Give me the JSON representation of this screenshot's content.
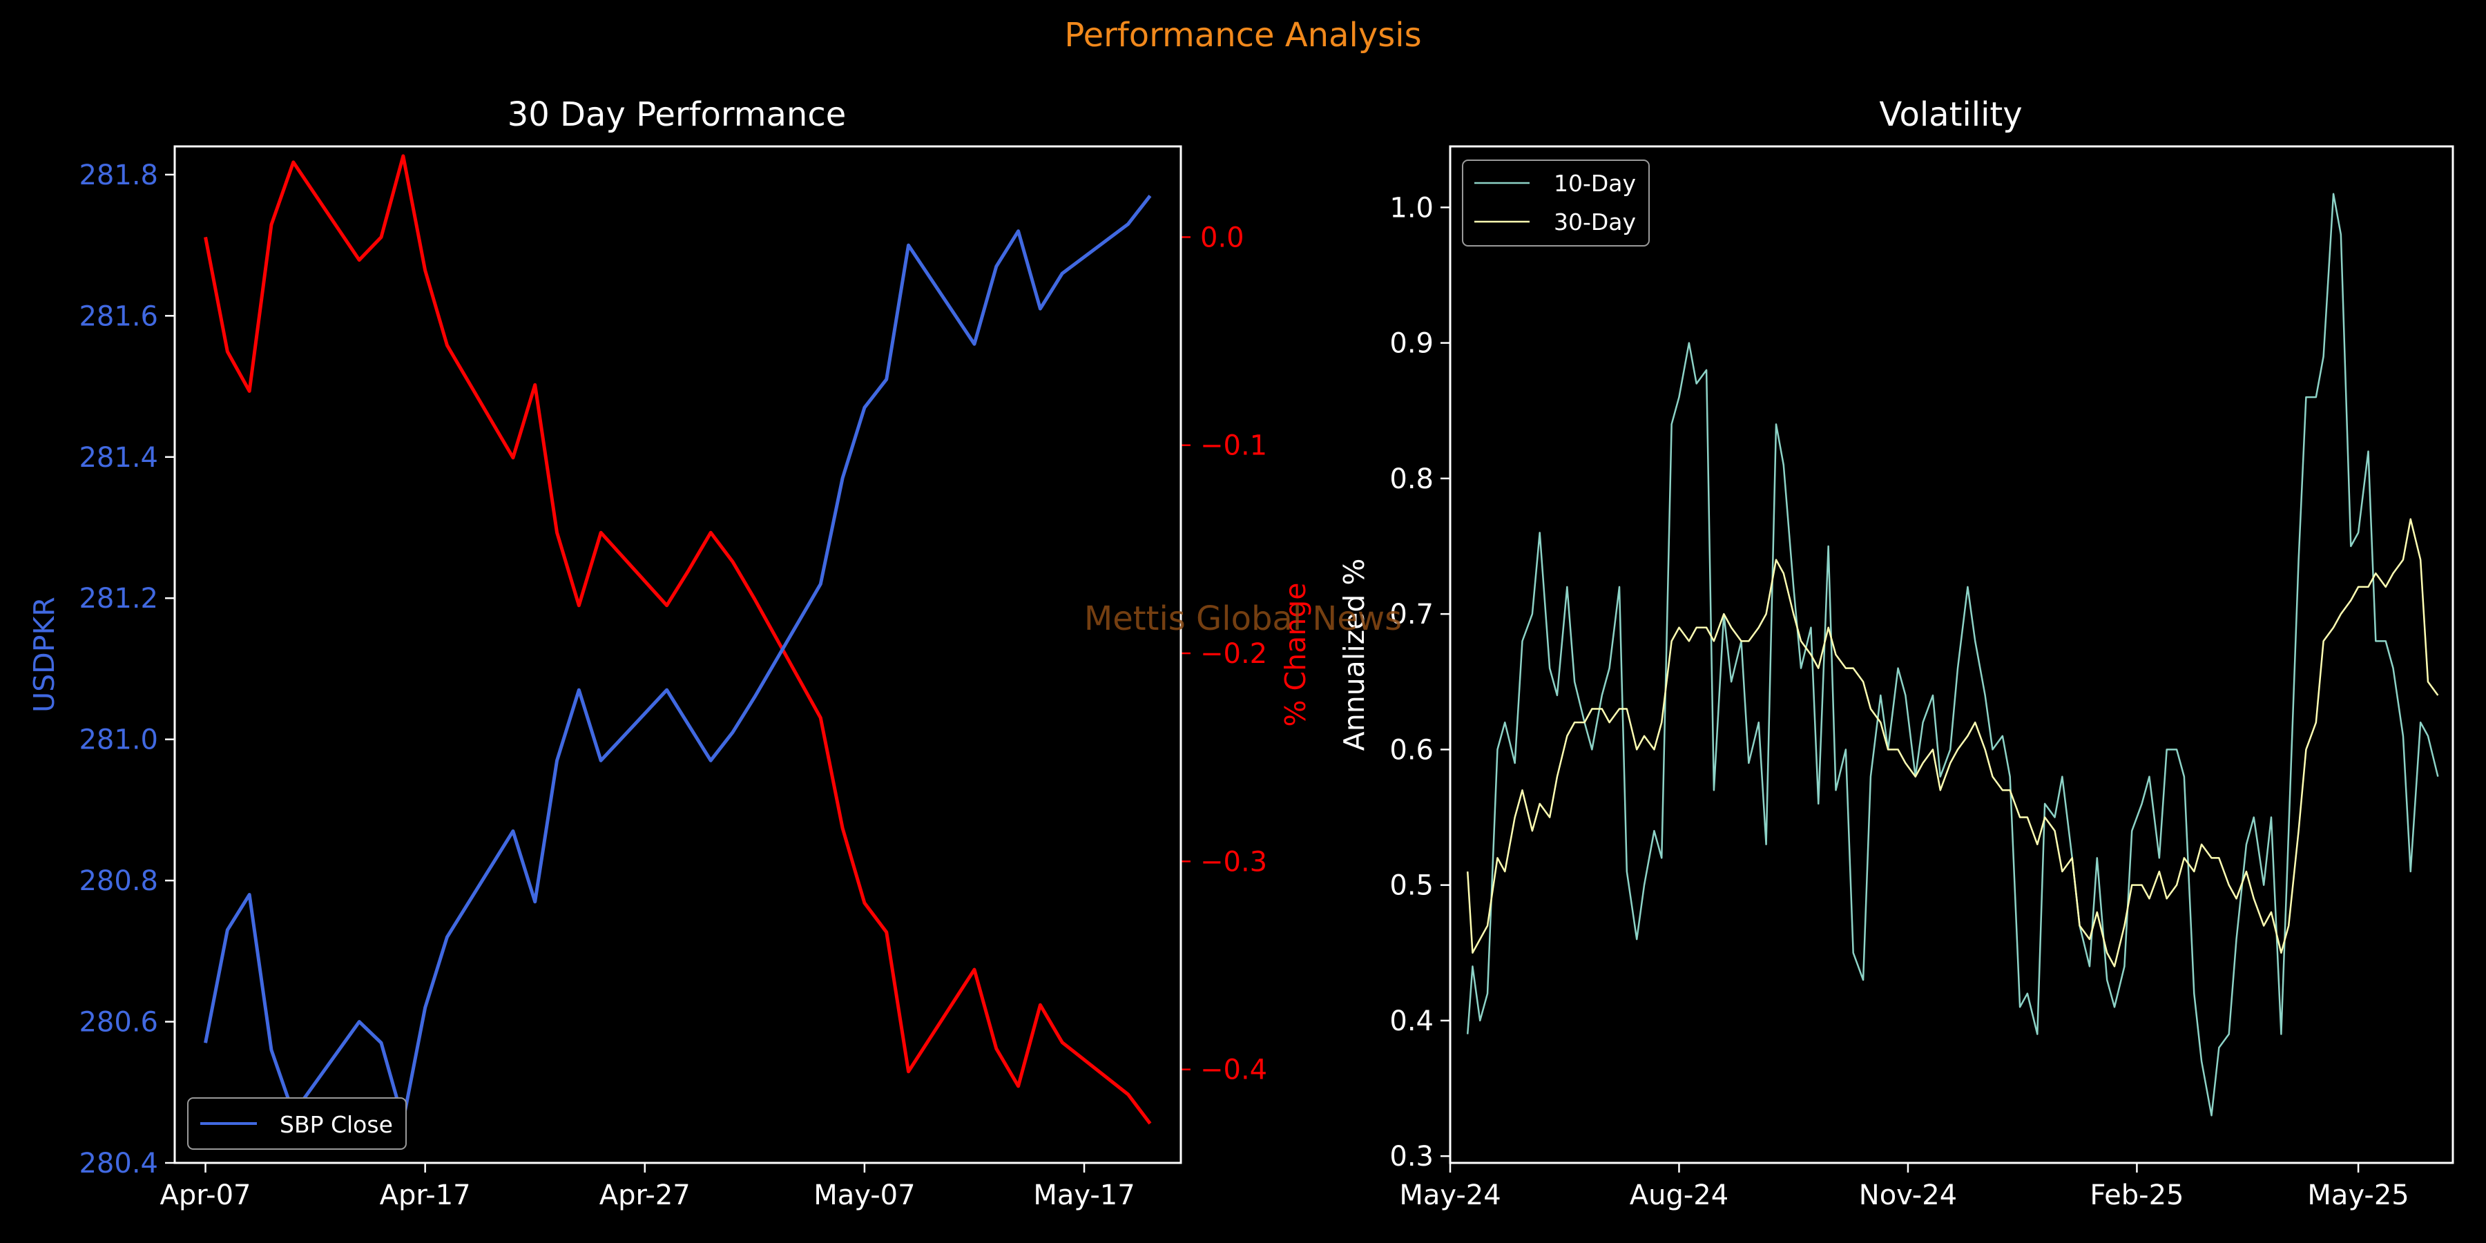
{
  "figure": {
    "title": "Performance Analysis",
    "watermark": "Mettis Global News",
    "colors": {
      "background": "#000000",
      "title": "#f2891c",
      "watermark": "#8a4a14",
      "axis_text": "#ffffff"
    }
  },
  "chart_data": [
    {
      "type": "line",
      "title": "30 Day Performance",
      "xlabel": "",
      "ylabel": "USDPKR",
      "ylabel_right": "% Change",
      "x_tick_labels": [
        "Apr-07",
        "Apr-17",
        "Apr-27",
        "May-07",
        "May-17"
      ],
      "x_tick_days": [
        0,
        10,
        20,
        30,
        40
      ],
      "ylim": [
        280.4,
        281.84
      ],
      "y_ticks": [
        280.4,
        280.6,
        280.8,
        281.0,
        281.2,
        281.4,
        281.6,
        281.8
      ],
      "y_tick_labels": [
        "280.4",
        "280.6",
        "280.8",
        "281.0",
        "281.2",
        "281.4",
        "281.6",
        "281.8"
      ],
      "ylim_right": [
        -0.4449,
        0.0436
      ],
      "y_ticks_right": [
        0.0,
        -0.1,
        -0.2,
        -0.3,
        -0.4
      ],
      "y_tick_labels_right": [
        "0.0",
        "−0.1",
        "−0.2",
        "−0.3",
        "−0.4"
      ],
      "legend": {
        "placement": "lower-left",
        "entries": [
          "SBP Close"
        ]
      },
      "grid": false,
      "series": [
        {
          "name": "SBP Close",
          "axis": "left",
          "color": "#4169e1",
          "x": [
            "2025-04-07",
            "2025-04-08",
            "2025-04-09",
            "2025-04-10",
            "2025-04-11",
            "2025-04-14",
            "2025-04-15",
            "2025-04-16",
            "2025-04-17",
            "2025-04-18",
            "2025-04-21",
            "2025-04-22",
            "2025-04-23",
            "2025-04-24",
            "2025-04-25",
            "2025-04-28",
            "2025-04-29",
            "2025-04-30",
            "2025-05-01",
            "2025-05-02",
            "2025-05-05",
            "2025-05-06",
            "2025-05-07",
            "2025-05-08",
            "2025-05-09",
            "2025-05-12",
            "2025-05-13",
            "2025-05-14",
            "2025-05-15",
            "2025-05-16",
            "2025-05-19",
            "2025-05-20"
          ],
          "values": [
            280.57,
            280.73,
            280.78,
            280.56,
            280.47,
            280.6,
            280.57,
            280.46,
            280.62,
            280.72,
            280.87,
            280.77,
            280.97,
            281.07,
            280.97,
            281.07,
            281.02,
            280.97,
            281.01,
            281.06,
            281.22,
            281.37,
            281.47,
            281.51,
            281.7,
            281.56,
            281.67,
            281.72,
            281.61,
            281.66,
            281.73,
            281.77
          ]
        },
        {
          "name": "% Change",
          "axis": "right",
          "color": "#ff0000",
          "x": [
            "2025-04-07",
            "2025-04-08",
            "2025-04-09",
            "2025-04-10",
            "2025-04-11",
            "2025-04-14",
            "2025-04-15",
            "2025-04-16",
            "2025-04-17",
            "2025-04-18",
            "2025-04-21",
            "2025-04-22",
            "2025-04-23",
            "2025-04-24",
            "2025-04-25",
            "2025-04-28",
            "2025-04-29",
            "2025-04-30",
            "2025-05-01",
            "2025-05-02",
            "2025-05-05",
            "2025-05-06",
            "2025-05-07",
            "2025-05-08",
            "2025-05-09",
            "2025-05-12",
            "2025-05-13",
            "2025-05-14",
            "2025-05-15",
            "2025-05-16",
            "2025-05-19",
            "2025-05-20"
          ],
          "values": [
            0.0,
            -0.055,
            -0.074,
            0.006,
            0.036,
            -0.011,
            0.0,
            0.039,
            -0.016,
            -0.052,
            -0.106,
            -0.071,
            -0.142,
            -0.177,
            -0.142,
            -0.177,
            -0.16,
            -0.142,
            -0.156,
            -0.174,
            -0.231,
            -0.284,
            -0.32,
            -0.334,
            -0.401,
            -0.352,
            -0.39,
            -0.408,
            -0.369,
            -0.387,
            -0.412,
            -0.426
          ]
        }
      ]
    },
    {
      "type": "line",
      "title": "Volatility",
      "xlabel": "",
      "ylabel": "Annualized %",
      "x_tick_labels": [
        "May-24",
        "Aug-24",
        "Nov-24",
        "Feb-25",
        "May-25"
      ],
      "x_tick_dates": [
        "2024-05-01",
        "2024-08-01",
        "2024-11-01",
        "2025-02-01",
        "2025-05-01"
      ],
      "xlim": [
        "2024-05-01",
        "2025-06-08"
      ],
      "ylim": [
        0.295,
        1.045
      ],
      "y_ticks": [
        0.3,
        0.4,
        0.5,
        0.6,
        0.7,
        0.8,
        0.9,
        1.0
      ],
      "y_tick_labels": [
        "0.3",
        "0.4",
        "0.5",
        "0.6",
        "0.7",
        "0.8",
        "0.9",
        "1.0"
      ],
      "legend": {
        "placement": "top-left",
        "entries": [
          "10-Day",
          "30-Day"
        ]
      },
      "grid": false,
      "series": [
        {
          "name": "10-Day",
          "color": "#8dd3c7",
          "x": [
            "2024-05-08",
            "2024-05-10",
            "2024-05-13",
            "2024-05-16",
            "2024-05-20",
            "2024-05-23",
            "2024-05-27",
            "2024-05-30",
            "2024-06-03",
            "2024-06-06",
            "2024-06-10",
            "2024-06-13",
            "2024-06-17",
            "2024-06-20",
            "2024-06-24",
            "2024-06-27",
            "2024-07-01",
            "2024-07-04",
            "2024-07-08",
            "2024-07-11",
            "2024-07-15",
            "2024-07-18",
            "2024-07-22",
            "2024-07-25",
            "2024-07-29",
            "2024-08-01",
            "2024-08-05",
            "2024-08-08",
            "2024-08-12",
            "2024-08-15",
            "2024-08-19",
            "2024-08-22",
            "2024-08-26",
            "2024-08-29",
            "2024-09-02",
            "2024-09-05",
            "2024-09-09",
            "2024-09-12",
            "2024-09-16",
            "2024-09-19",
            "2024-09-23",
            "2024-09-26",
            "2024-09-30",
            "2024-10-03",
            "2024-10-07",
            "2024-10-10",
            "2024-10-14",
            "2024-10-17",
            "2024-10-21",
            "2024-10-24",
            "2024-10-28",
            "2024-10-31",
            "2024-11-04",
            "2024-11-07",
            "2024-11-11",
            "2024-11-14",
            "2024-11-18",
            "2024-11-21",
            "2024-11-25",
            "2024-11-28",
            "2024-12-02",
            "2024-12-05",
            "2024-12-09",
            "2024-12-12",
            "2024-12-16",
            "2024-12-19",
            "2024-12-23",
            "2024-12-26",
            "2024-12-30",
            "2025-01-02",
            "2025-01-06",
            "2025-01-09",
            "2025-01-13",
            "2025-01-16",
            "2025-01-20",
            "2025-01-23",
            "2025-01-27",
            "2025-01-30",
            "2025-02-03",
            "2025-02-06",
            "2025-02-10",
            "2025-02-13",
            "2025-02-17",
            "2025-02-20",
            "2025-02-24",
            "2025-02-27",
            "2025-03-03",
            "2025-03-06",
            "2025-03-10",
            "2025-03-13",
            "2025-03-17",
            "2025-03-20",
            "2025-03-24",
            "2025-03-27",
            "2025-03-31",
            "2025-04-03",
            "2025-04-07",
            "2025-04-10",
            "2025-04-14",
            "2025-04-17",
            "2025-04-21",
            "2025-04-24",
            "2025-04-28",
            "2025-05-01",
            "2025-05-05",
            "2025-05-08",
            "2025-05-12",
            "2025-05-15",
            "2025-05-19",
            "2025-05-22",
            "2025-05-26",
            "2025-05-29",
            "2025-06-02"
          ],
          "values": [
            0.39,
            0.44,
            0.4,
            0.42,
            0.6,
            0.62,
            0.59,
            0.68,
            0.7,
            0.76,
            0.66,
            0.64,
            0.72,
            0.65,
            0.62,
            0.6,
            0.64,
            0.66,
            0.72,
            0.51,
            0.46,
            0.5,
            0.54,
            0.52,
            0.84,
            0.86,
            0.9,
            0.87,
            0.88,
            0.57,
            0.7,
            0.65,
            0.68,
            0.59,
            0.62,
            0.53,
            0.84,
            0.81,
            0.72,
            0.66,
            0.69,
            0.56,
            0.75,
            0.57,
            0.6,
            0.45,
            0.43,
            0.58,
            0.64,
            0.6,
            0.66,
            0.64,
            0.58,
            0.62,
            0.64,
            0.58,
            0.6,
            0.66,
            0.72,
            0.68,
            0.64,
            0.6,
            0.61,
            0.58,
            0.41,
            0.42,
            0.39,
            0.56,
            0.55,
            0.58,
            0.52,
            0.47,
            0.44,
            0.52,
            0.43,
            0.41,
            0.44,
            0.54,
            0.56,
            0.58,
            0.52,
            0.6,
            0.6,
            0.58,
            0.42,
            0.37,
            0.33,
            0.38,
            0.39,
            0.46,
            0.53,
            0.55,
            0.5,
            0.55,
            0.39,
            0.54,
            0.74,
            0.86,
            0.86,
            0.89,
            1.01,
            0.98,
            0.75,
            0.76,
            0.82,
            0.68,
            0.68,
            0.66,
            0.61,
            0.51,
            0.62,
            0.61,
            0.58
          ]
        },
        {
          "name": "30-Day",
          "color": "#ffffb3",
          "x": [
            "2024-05-08",
            "2024-05-10",
            "2024-05-13",
            "2024-05-16",
            "2024-05-20",
            "2024-05-23",
            "2024-05-27",
            "2024-05-30",
            "2024-06-03",
            "2024-06-06",
            "2024-06-10",
            "2024-06-13",
            "2024-06-17",
            "2024-06-20",
            "2024-06-24",
            "2024-06-27",
            "2024-07-01",
            "2024-07-04",
            "2024-07-08",
            "2024-07-11",
            "2024-07-15",
            "2024-07-18",
            "2024-07-22",
            "2024-07-25",
            "2024-07-29",
            "2024-08-01",
            "2024-08-05",
            "2024-08-08",
            "2024-08-12",
            "2024-08-15",
            "2024-08-19",
            "2024-08-22",
            "2024-08-26",
            "2024-08-29",
            "2024-09-02",
            "2024-09-05",
            "2024-09-09",
            "2024-09-12",
            "2024-09-16",
            "2024-09-19",
            "2024-09-23",
            "2024-09-26",
            "2024-09-30",
            "2024-10-03",
            "2024-10-07",
            "2024-10-10",
            "2024-10-14",
            "2024-10-17",
            "2024-10-21",
            "2024-10-24",
            "2024-10-28",
            "2024-10-31",
            "2024-11-04",
            "2024-11-07",
            "2024-11-11",
            "2024-11-14",
            "2024-11-18",
            "2024-11-21",
            "2024-11-25",
            "2024-11-28",
            "2024-12-02",
            "2024-12-05",
            "2024-12-09",
            "2024-12-12",
            "2024-12-16",
            "2024-12-19",
            "2024-12-23",
            "2024-12-26",
            "2024-12-30",
            "2025-01-02",
            "2025-01-06",
            "2025-01-09",
            "2025-01-13",
            "2025-01-16",
            "2025-01-20",
            "2025-01-23",
            "2025-01-27",
            "2025-01-30",
            "2025-02-03",
            "2025-02-06",
            "2025-02-10",
            "2025-02-13",
            "2025-02-17",
            "2025-02-20",
            "2025-02-24",
            "2025-02-27",
            "2025-03-03",
            "2025-03-06",
            "2025-03-10",
            "2025-03-13",
            "2025-03-17",
            "2025-03-20",
            "2025-03-24",
            "2025-03-27",
            "2025-03-31",
            "2025-04-03",
            "2025-04-07",
            "2025-04-10",
            "2025-04-14",
            "2025-04-17",
            "2025-04-21",
            "2025-04-24",
            "2025-04-28",
            "2025-05-01",
            "2025-05-05",
            "2025-05-08",
            "2025-05-12",
            "2025-05-15",
            "2025-05-19",
            "2025-05-22",
            "2025-05-26",
            "2025-05-29",
            "2025-06-02"
          ],
          "values": [
            0.51,
            0.45,
            0.46,
            0.47,
            0.52,
            0.51,
            0.55,
            0.57,
            0.54,
            0.56,
            0.55,
            0.58,
            0.61,
            0.62,
            0.62,
            0.63,
            0.63,
            0.62,
            0.63,
            0.63,
            0.6,
            0.61,
            0.6,
            0.62,
            0.68,
            0.69,
            0.68,
            0.69,
            0.69,
            0.68,
            0.7,
            0.69,
            0.68,
            0.68,
            0.69,
            0.7,
            0.74,
            0.73,
            0.7,
            0.68,
            0.67,
            0.66,
            0.69,
            0.67,
            0.66,
            0.66,
            0.65,
            0.63,
            0.62,
            0.6,
            0.6,
            0.59,
            0.58,
            0.59,
            0.6,
            0.57,
            0.59,
            0.6,
            0.61,
            0.62,
            0.6,
            0.58,
            0.57,
            0.57,
            0.55,
            0.55,
            0.53,
            0.55,
            0.54,
            0.51,
            0.52,
            0.47,
            0.46,
            0.48,
            0.45,
            0.44,
            0.47,
            0.5,
            0.5,
            0.49,
            0.51,
            0.49,
            0.5,
            0.52,
            0.51,
            0.53,
            0.52,
            0.52,
            0.5,
            0.49,
            0.51,
            0.49,
            0.47,
            0.48,
            0.45,
            0.47,
            0.54,
            0.6,
            0.62,
            0.68,
            0.69,
            0.7,
            0.71,
            0.72,
            0.72,
            0.73,
            0.72,
            0.73,
            0.74,
            0.77,
            0.74,
            0.65,
            0.64
          ]
        }
      ]
    }
  ]
}
